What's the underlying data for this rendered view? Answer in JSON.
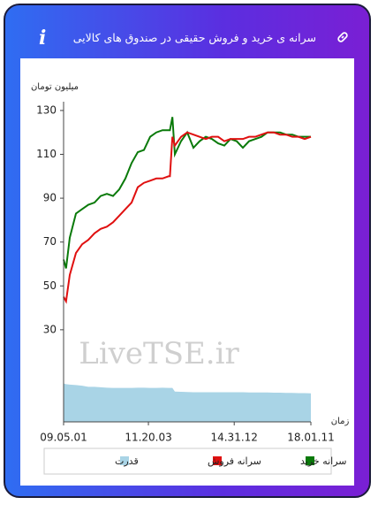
{
  "header": {
    "title": "سرانه ی خرید و فروش حقیقی در صندوق های کالایی",
    "info_icon": "i"
  },
  "chart_data": {
    "type": "line",
    "y_label": "میلیون تومان",
    "x_label": "زمان",
    "watermark": "LiveTSE.ir",
    "x": [
      0,
      1,
      2.5,
      5,
      7.5,
      10,
      12.5,
      15,
      17.5,
      20,
      22.5,
      25,
      27.5,
      30,
      32.5,
      35,
      37.5,
      40,
      42.5,
      43,
      44,
      45,
      47.5,
      50,
      52.5,
      55,
      57.5,
      60,
      62.5,
      65,
      67.5,
      70,
      72.5,
      75,
      77.5,
      80,
      82.5,
      85,
      87.5,
      90,
      92.5,
      95,
      97.5,
      100
    ],
    "xlim": [
      0,
      100
    ],
    "xticks": [
      {
        "value": 0,
        "label": "09.05.01"
      },
      {
        "value": 34.3,
        "label": "11.20.03"
      },
      {
        "value": 69,
        "label": "14.31.12"
      },
      {
        "value": 100,
        "label": "18.01.11"
      }
    ],
    "ylim": [
      -12,
      134
    ],
    "yticks": [
      30,
      50,
      70,
      90,
      110,
      130
    ],
    "series": [
      {
        "name": "سرانه خرید",
        "color": "#0a7a0a",
        "values": [
          62,
          58,
          72,
          83,
          85,
          87,
          88,
          91,
          92,
          91,
          94,
          99,
          106,
          111,
          112,
          118,
          120,
          121,
          121,
          121,
          127,
          110,
          116,
          120,
          113,
          116,
          118,
          117,
          115,
          114,
          117,
          116,
          113,
          116,
          117,
          118,
          120,
          120,
          120,
          119,
          119,
          118,
          118,
          118
        ]
      },
      {
        "name": "سرانه فروش",
        "color": "#e01010",
        "values": [
          45,
          43,
          55,
          65,
          69,
          71,
          74,
          76,
          77,
          79,
          82,
          85,
          88,
          95,
          97,
          98,
          99,
          99,
          100,
          100,
          118,
          114,
          118,
          120,
          119,
          118,
          117,
          118,
          118,
          116,
          117,
          117,
          117,
          118,
          118,
          119,
          120,
          120,
          119,
          119,
          118,
          118,
          117,
          118
        ]
      },
      {
        "name": "قدرت",
        "color": "#a9d4e6",
        "fill": true,
        "values": [
          5.5,
          5.2,
          5,
          4.8,
          4.5,
          4,
          4,
          3.8,
          3.6,
          3.5,
          3.5,
          3.5,
          3.5,
          3.6,
          3.6,
          3.5,
          3.5,
          3.6,
          3.5,
          3.5,
          3.5,
          1.8,
          1.7,
          1.6,
          1.5,
          1.5,
          1.5,
          1.5,
          1.5,
          1.5,
          1.5,
          1.5,
          1.5,
          1.4,
          1.4,
          1.4,
          1.4,
          1.3,
          1.3,
          1.2,
          1.2,
          1.1,
          1.1,
          1.0
        ]
      }
    ]
  }
}
